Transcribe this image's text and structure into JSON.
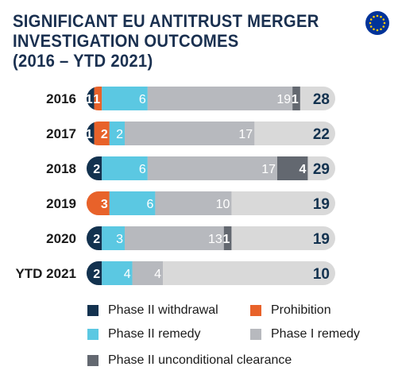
{
  "title_lines": [
    "SIGNIFICANT EU ANTITRUST MERGER",
    "INVESTIGATION OUTCOMES",
    "(2016 – YTD 2021)"
  ],
  "colors": {
    "title": "#1a3050",
    "phase2_withdrawal": "#13324f",
    "prohibition": "#e8622a",
    "phase2_remedy": "#5bc8e2",
    "phase1_remedy": "#b7b9be",
    "phase2_unconditional": "#636870",
    "track": "#d9d9d9",
    "eu_blue": "#003399",
    "eu_star": "#ffcc00"
  },
  "chart_data": {
    "type": "bar",
    "orientation": "horizontal",
    "stacked": true,
    "categories": [
      "2016",
      "2017",
      "2018",
      "2019",
      "2020",
      "YTD 2021"
    ],
    "series": [
      {
        "name": "Phase II withdrawal",
        "key": "phase2_withdrawal",
        "values": [
          1,
          1,
          2,
          0,
          2,
          2
        ]
      },
      {
        "name": "Prohibition",
        "key": "prohibition",
        "values": [
          1,
          2,
          0,
          3,
          0,
          0
        ]
      },
      {
        "name": "Phase II remedy",
        "key": "phase2_remedy",
        "values": [
          6,
          2,
          6,
          6,
          3,
          4
        ]
      },
      {
        "name": "Phase I remedy",
        "key": "phase1_remedy",
        "values": [
          19,
          17,
          17,
          10,
          13,
          4
        ]
      },
      {
        "name": "Phase II unconditional clearance",
        "key": "phase2_unconditional",
        "values": [
          1,
          0,
          4,
          0,
          1,
          0
        ]
      }
    ],
    "totals": [
      28,
      22,
      29,
      19,
      19,
      10
    ],
    "xlim": [
      0,
      32
    ],
    "grid": false,
    "legend_position": "bottom"
  },
  "legend": [
    {
      "label": "Phase II withdrawal",
      "key": "phase2_withdrawal"
    },
    {
      "label": "Prohibition",
      "key": "prohibition"
    },
    {
      "label": "Phase II remedy",
      "key": "phase2_remedy"
    },
    {
      "label": "Phase I remedy",
      "key": "phase1_remedy"
    },
    {
      "label": "Phase II unconditional clearance",
      "key": "phase2_unconditional"
    }
  ]
}
